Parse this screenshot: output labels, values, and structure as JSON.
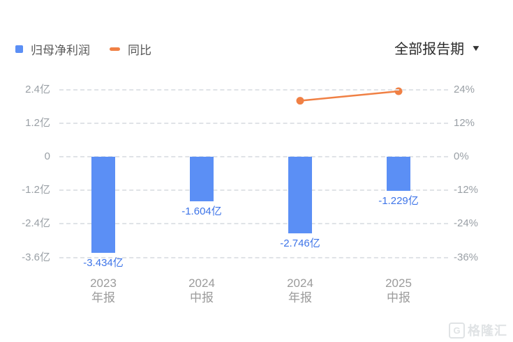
{
  "legend": {
    "items": [
      {
        "label": "归母净利润",
        "color": "#5B8FF5",
        "marker": "square"
      },
      {
        "label": "同比",
        "color": "#F08044",
        "marker": "dash"
      }
    ]
  },
  "period_filter": {
    "label": "全部报告期"
  },
  "watermark": {
    "logo": "G",
    "text": "格隆汇"
  },
  "chart_data": {
    "type": "bar",
    "title": "",
    "categories": [
      {
        "line1": "2023",
        "line2": "年报"
      },
      {
        "line1": "2024",
        "line2": "中报"
      },
      {
        "line1": "2024",
        "line2": "年报"
      },
      {
        "line1": "2025",
        "line2": "中报"
      }
    ],
    "series": [
      {
        "name": "归母净利润",
        "type": "bar",
        "axis": "left",
        "unit": "亿",
        "color": "#5B8FF5",
        "label_color": "#3D74E8",
        "values": [
          -3.434,
          -1.604,
          -2.746,
          -1.229
        ],
        "labels": [
          "-3.434亿",
          "-1.604亿",
          "-2.746亿",
          "-1.229亿"
        ]
      },
      {
        "name": "同比",
        "type": "line",
        "axis": "right",
        "unit": "%",
        "color": "#F08044",
        "values": [
          null,
          null,
          20.0,
          23.4
        ]
      }
    ],
    "left_axis": {
      "unit": "亿",
      "ticks": [
        "2.4亿",
        "1.2亿",
        "0",
        "-1.2亿",
        "-2.4亿",
        "-3.6亿"
      ],
      "values": [
        2.4,
        1.2,
        0,
        -1.2,
        -2.4,
        -3.6
      ],
      "range": [
        -3.6,
        2.4
      ]
    },
    "right_axis": {
      "unit": "%",
      "ticks": [
        "24%",
        "12%",
        "0%",
        "-12%",
        "-24%",
        "-36%"
      ],
      "values": [
        24,
        12,
        0,
        -12,
        -24,
        -36
      ],
      "range": [
        -36,
        24
      ]
    },
    "grid": "dashed-horizontal",
    "legend_position": "top-left"
  }
}
